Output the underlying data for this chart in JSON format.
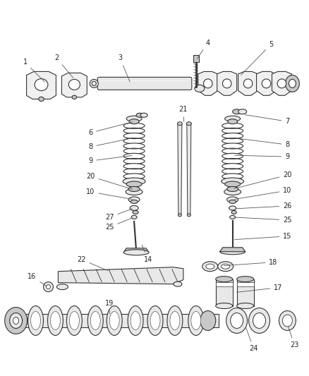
{
  "bg_color": "#ffffff",
  "line_color": "#333333",
  "fill_light": "#e8e8e8",
  "fill_mid": "#c8c8c8",
  "fill_dark": "#a0a0a0",
  "fig_width": 4.38,
  "fig_height": 5.33,
  "dpi": 100,
  "lw": 0.8,
  "label_fontsize": 7.0
}
